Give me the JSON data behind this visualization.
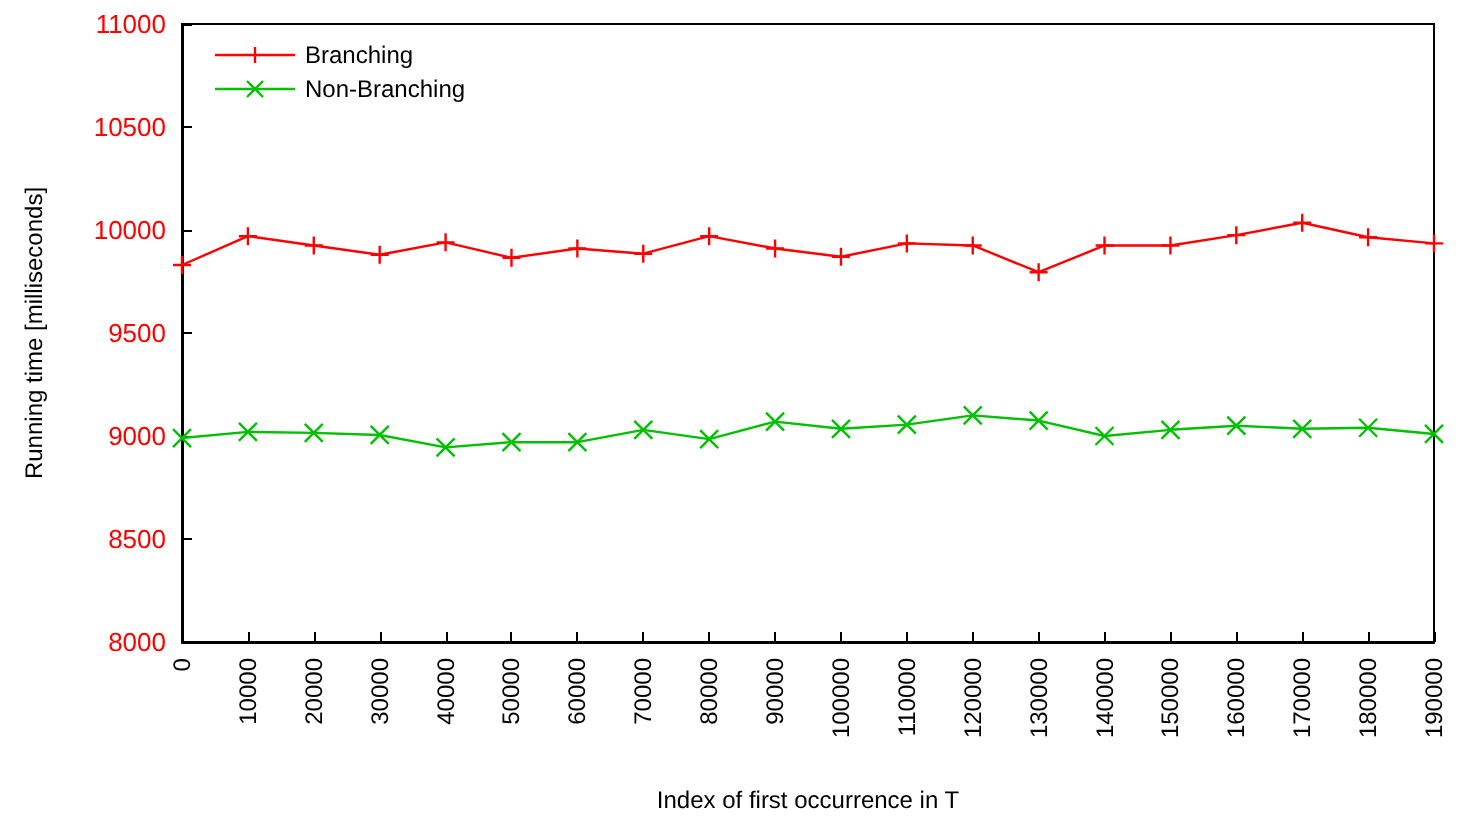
{
  "chart_data": {
    "type": "line",
    "xlabel": "Index of first occurrence in T",
    "ylabel": "Running time [milliseconds]",
    "categories": [
      "0",
      "10000",
      "20000",
      "30000",
      "40000",
      "50000",
      "60000",
      "70000",
      "80000",
      "90000",
      "100000",
      "110000",
      "120000",
      "130000",
      "140000",
      "150000",
      "160000",
      "170000",
      "180000",
      "190000"
    ],
    "series": [
      {
        "name": "Branching",
        "color": "#ff0000",
        "marker": "plus",
        "values": [
          9830,
          9970,
          9925,
          9880,
          9940,
          9865,
          9910,
          9885,
          9970,
          9910,
          9870,
          9935,
          9925,
          9795,
          9925,
          9925,
          9975,
          10035,
          9965,
          9935
        ]
      },
      {
        "name": "Non-Branching",
        "color": "#00c000",
        "marker": "cross",
        "values": [
          8990,
          9020,
          9015,
          9005,
          8945,
          8970,
          8970,
          9030,
          8985,
          9070,
          9035,
          9055,
          9100,
          9075,
          9000,
          9030,
          9050,
          9035,
          9040,
          9010
        ]
      }
    ],
    "ylim": [
      8000,
      11000
    ],
    "yticks": [
      8000,
      8500,
      9000,
      9500,
      10000,
      10500,
      11000
    ],
    "grid": false,
    "legend": "top left",
    "line_style": "solid"
  }
}
